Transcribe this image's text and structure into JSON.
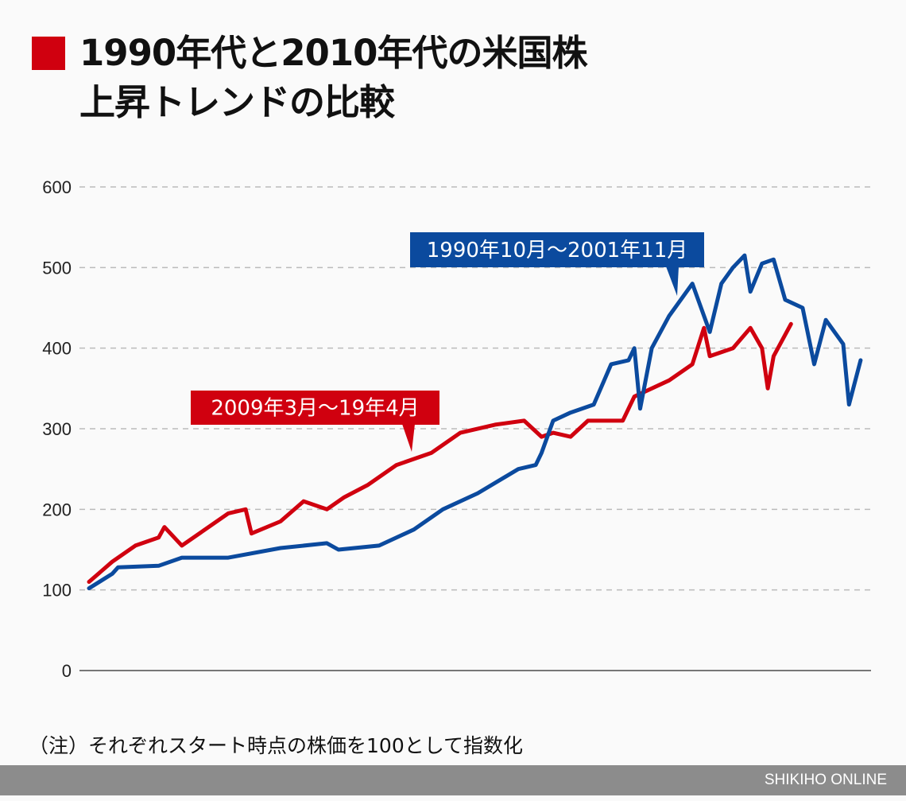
{
  "header": {
    "title_line1": "1990年代と2010年代の米国株",
    "title_line2": "上昇トレンドの比較",
    "marker_color": "#d0000f"
  },
  "chart_data": {
    "type": "line",
    "title": "1990年代と2010年代の米国株 上昇トレンドの比較",
    "xlabel": "",
    "ylabel": "",
    "ylim": [
      0,
      600
    ],
    "yticks": [
      0,
      100,
      200,
      300,
      400,
      500,
      600
    ],
    "grid": "horizontal dashed",
    "x_unit": "months from start",
    "series": [
      {
        "name": "1990年10月～2001年11月",
        "color": "#0b4a9e",
        "points": [
          [
            0,
            102
          ],
          [
            4,
            120
          ],
          [
            5,
            128
          ],
          [
            12,
            130
          ],
          [
            16,
            140
          ],
          [
            24,
            140
          ],
          [
            33,
            152
          ],
          [
            41,
            158
          ],
          [
            43,
            150
          ],
          [
            50,
            155
          ],
          [
            56,
            175
          ],
          [
            61,
            200
          ],
          [
            67,
            220
          ],
          [
            74,
            250
          ],
          [
            77,
            255
          ],
          [
            78,
            270
          ],
          [
            80,
            310
          ],
          [
            83,
            320
          ],
          [
            87,
            330
          ],
          [
            90,
            380
          ],
          [
            93,
            385
          ],
          [
            94,
            400
          ],
          [
            95,
            325
          ],
          [
            97,
            400
          ],
          [
            100,
            440
          ],
          [
            102,
            460
          ],
          [
            104,
            480
          ],
          [
            107,
            420
          ],
          [
            109,
            480
          ],
          [
            111,
            500
          ],
          [
            113,
            515
          ],
          [
            114,
            470
          ],
          [
            116,
            505
          ],
          [
            118,
            510
          ],
          [
            120,
            460
          ],
          [
            123,
            450
          ],
          [
            125,
            380
          ],
          [
            127,
            435
          ],
          [
            130,
            405
          ],
          [
            131,
            330
          ],
          [
            133,
            385
          ]
        ]
      },
      {
        "name": "2009年3月～19年4月",
        "color": "#d0000f",
        "points": [
          [
            0,
            110
          ],
          [
            4,
            135
          ],
          [
            8,
            155
          ],
          [
            12,
            165
          ],
          [
            13,
            178
          ],
          [
            16,
            155
          ],
          [
            20,
            175
          ],
          [
            24,
            195
          ],
          [
            27,
            200
          ],
          [
            28,
            170
          ],
          [
            33,
            185
          ],
          [
            37,
            210
          ],
          [
            41,
            200
          ],
          [
            44,
            215
          ],
          [
            48,
            230
          ],
          [
            53,
            255
          ],
          [
            59,
            270
          ],
          [
            64,
            295
          ],
          [
            70,
            305
          ],
          [
            75,
            310
          ],
          [
            78,
            290
          ],
          [
            80,
            295
          ],
          [
            83,
            290
          ],
          [
            86,
            310
          ],
          [
            92,
            310
          ],
          [
            94,
            340
          ],
          [
            100,
            360
          ],
          [
            104,
            380
          ],
          [
            106,
            425
          ],
          [
            107,
            390
          ],
          [
            111,
            400
          ],
          [
            114,
            425
          ],
          [
            116,
            400
          ],
          [
            117,
            350
          ],
          [
            118,
            390
          ],
          [
            121,
            430
          ]
        ]
      }
    ],
    "annotations": [
      "1990年10月～2001年11月",
      "2009年3月～19年4月"
    ]
  },
  "note": "（注）それぞれスタート時点の株価を100として指数化",
  "footer": {
    "brand": "SHIKIHO ONLINE"
  }
}
